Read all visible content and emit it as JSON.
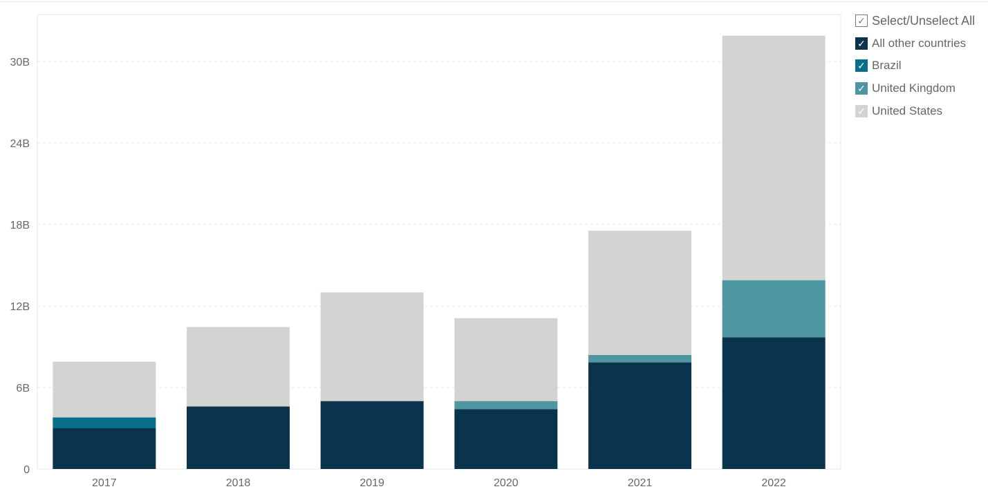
{
  "legend": {
    "select_all_label": "Select/Unselect All",
    "check_glyph": "✓",
    "items": [
      {
        "label": "All other countries",
        "color": "#0a334d"
      },
      {
        "label": "Brazil",
        "color": "#096e8a"
      },
      {
        "label": "United Kingdom",
        "color": "#4e96a2"
      },
      {
        "label": "United States",
        "color": "#d3d3d1"
      }
    ]
  },
  "chart_data": {
    "type": "bar",
    "stacked": true,
    "categories": [
      "2017",
      "2018",
      "2019",
      "2020",
      "2021",
      "2022"
    ],
    "series": [
      {
        "name": "All other countries",
        "color": "#0a334d",
        "values": [
          3.0,
          4.6,
          5.0,
          4.4,
          7.85,
          9.7
        ]
      },
      {
        "name": "Brazil",
        "color": "#096e8a",
        "values": [
          0.8,
          0,
          0,
          0,
          0,
          0
        ]
      },
      {
        "name": "United Kingdom",
        "color": "#4e96a2",
        "values": [
          0,
          0,
          0,
          0.6,
          0.55,
          4.2
        ]
      },
      {
        "name": "United States",
        "color": "#d3d3d1",
        "values": [
          4.1,
          5.85,
          8.0,
          6.1,
          9.15,
          18.0
        ]
      }
    ],
    "ylim": [
      0,
      33
    ],
    "yticks": [
      0,
      6,
      12,
      18,
      24,
      30
    ],
    "ytick_labels": [
      "0",
      "6B",
      "12B",
      "18B",
      "24B",
      "30B"
    ],
    "grid": true,
    "legend_position": "right",
    "title": "",
    "xlabel": "",
    "ylabel": ""
  }
}
